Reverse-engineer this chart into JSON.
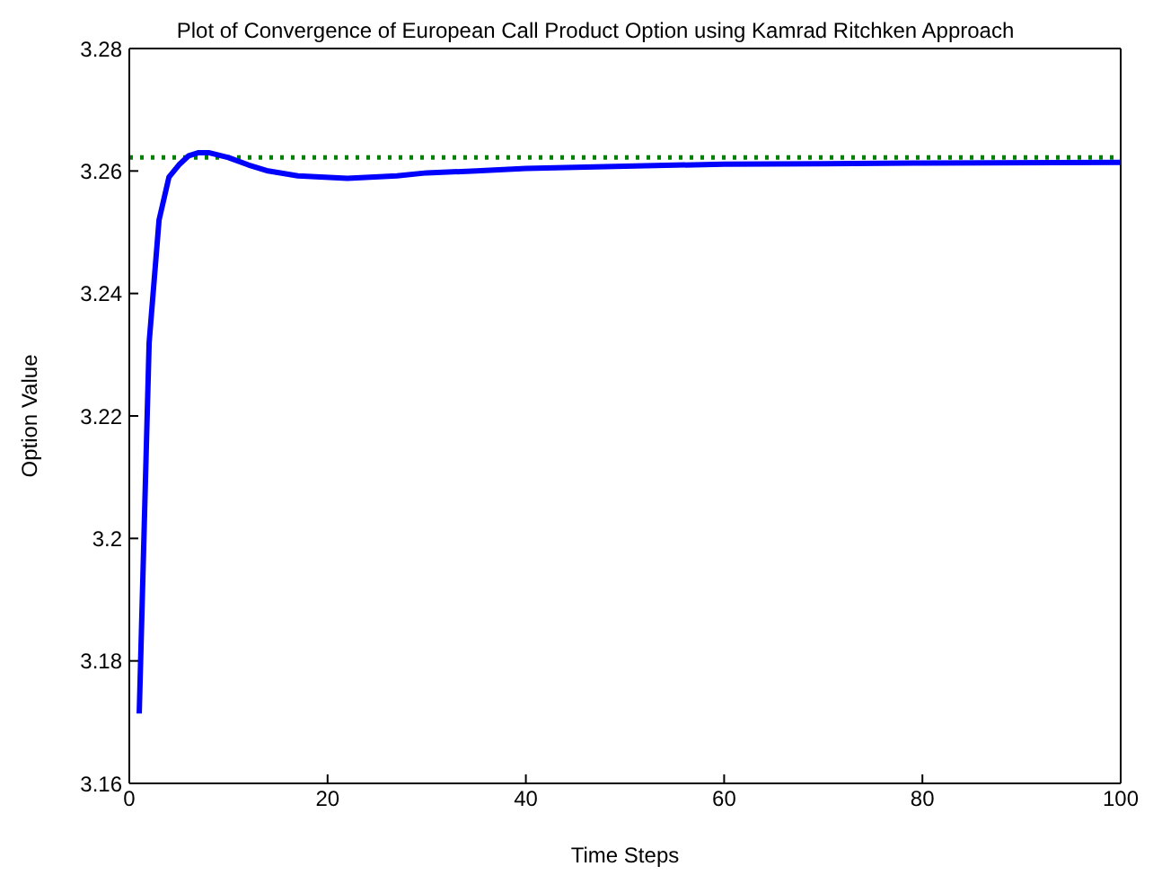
{
  "chart_data": {
    "type": "line",
    "title": "Plot of Convergence of European Call Product Option using Kamrad Ritchken Approach",
    "xlabel": "Time Steps",
    "ylabel": "Option Value",
    "x": [
      1,
      2,
      3,
      4,
      5,
      6,
      7,
      8,
      10,
      12,
      14,
      17,
      22,
      27,
      30,
      35,
      40,
      50,
      60,
      70,
      80,
      100
    ],
    "series": [
      {
        "color": "#0000ff",
        "values": [
          3.1714,
          3.232,
          3.252,
          3.259,
          3.261,
          3.2625,
          3.263,
          3.263,
          3.2622,
          3.261,
          3.26,
          3.2592,
          3.2588,
          3.2592,
          3.2597,
          3.26,
          3.2604,
          3.2608,
          3.2611,
          3.2612,
          3.2613,
          3.2614
        ]
      }
    ],
    "xlim": [
      0,
      100
    ],
    "xticks": [
      0,
      20,
      40,
      60,
      80,
      100
    ],
    "ylim": [
      3.16,
      3.28
    ],
    "yticks": [
      3.16,
      3.18,
      3.2,
      3.22,
      3.24,
      3.26,
      3.28
    ],
    "ref_lines": [
      {
        "axis": "y",
        "value": 3.2622,
        "color": "#008000",
        "line_style": "dotted"
      }
    ],
    "grid": false,
    "legend": false,
    "marker": "none",
    "line_style": "solid"
  }
}
